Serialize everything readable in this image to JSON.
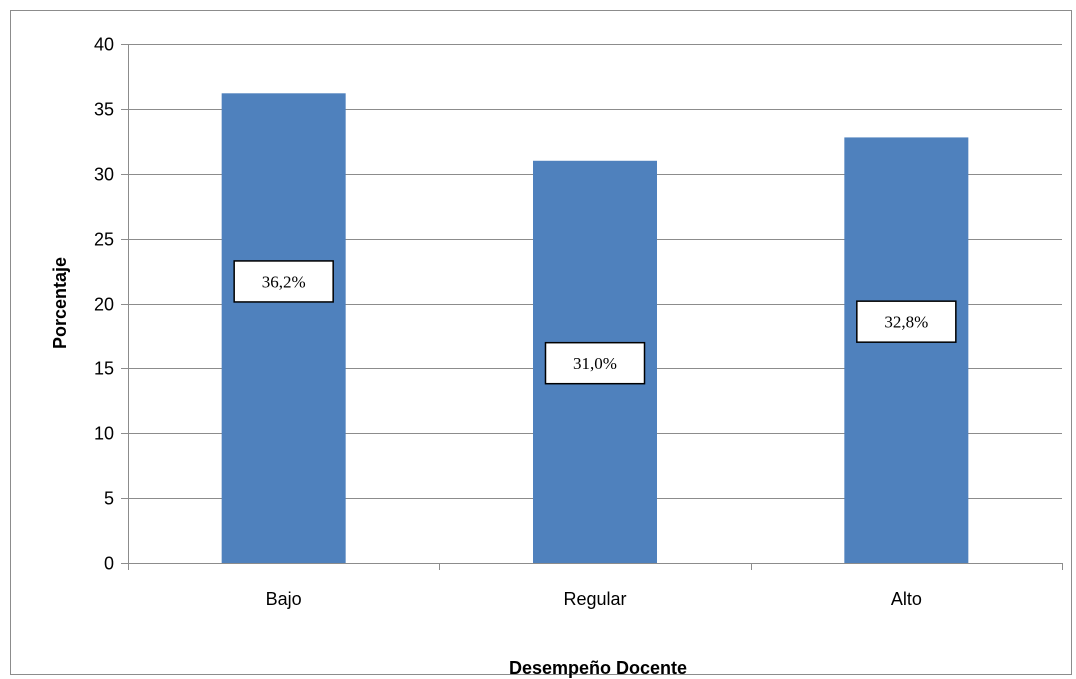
{
  "chart_data": {
    "type": "bar",
    "title": "",
    "xlabel": "Desempeño Docente",
    "ylabel": "Porcentaje",
    "categories": [
      "Bajo",
      "Regular",
      "Alto"
    ],
    "values": [
      36.2,
      31.0,
      32.8
    ],
    "data_labels": [
      "36,2%",
      "31,0%",
      "32,8%"
    ],
    "label_positions": [
      21.7,
      15.4,
      18.6
    ],
    "ylim": [
      0,
      40
    ],
    "yticks": [
      0,
      5,
      10,
      15,
      20,
      25,
      30,
      35,
      40
    ],
    "grid": true,
    "legend": "none",
    "bar_color": "#4f81bd",
    "grid_color": "#8c8c8c"
  }
}
